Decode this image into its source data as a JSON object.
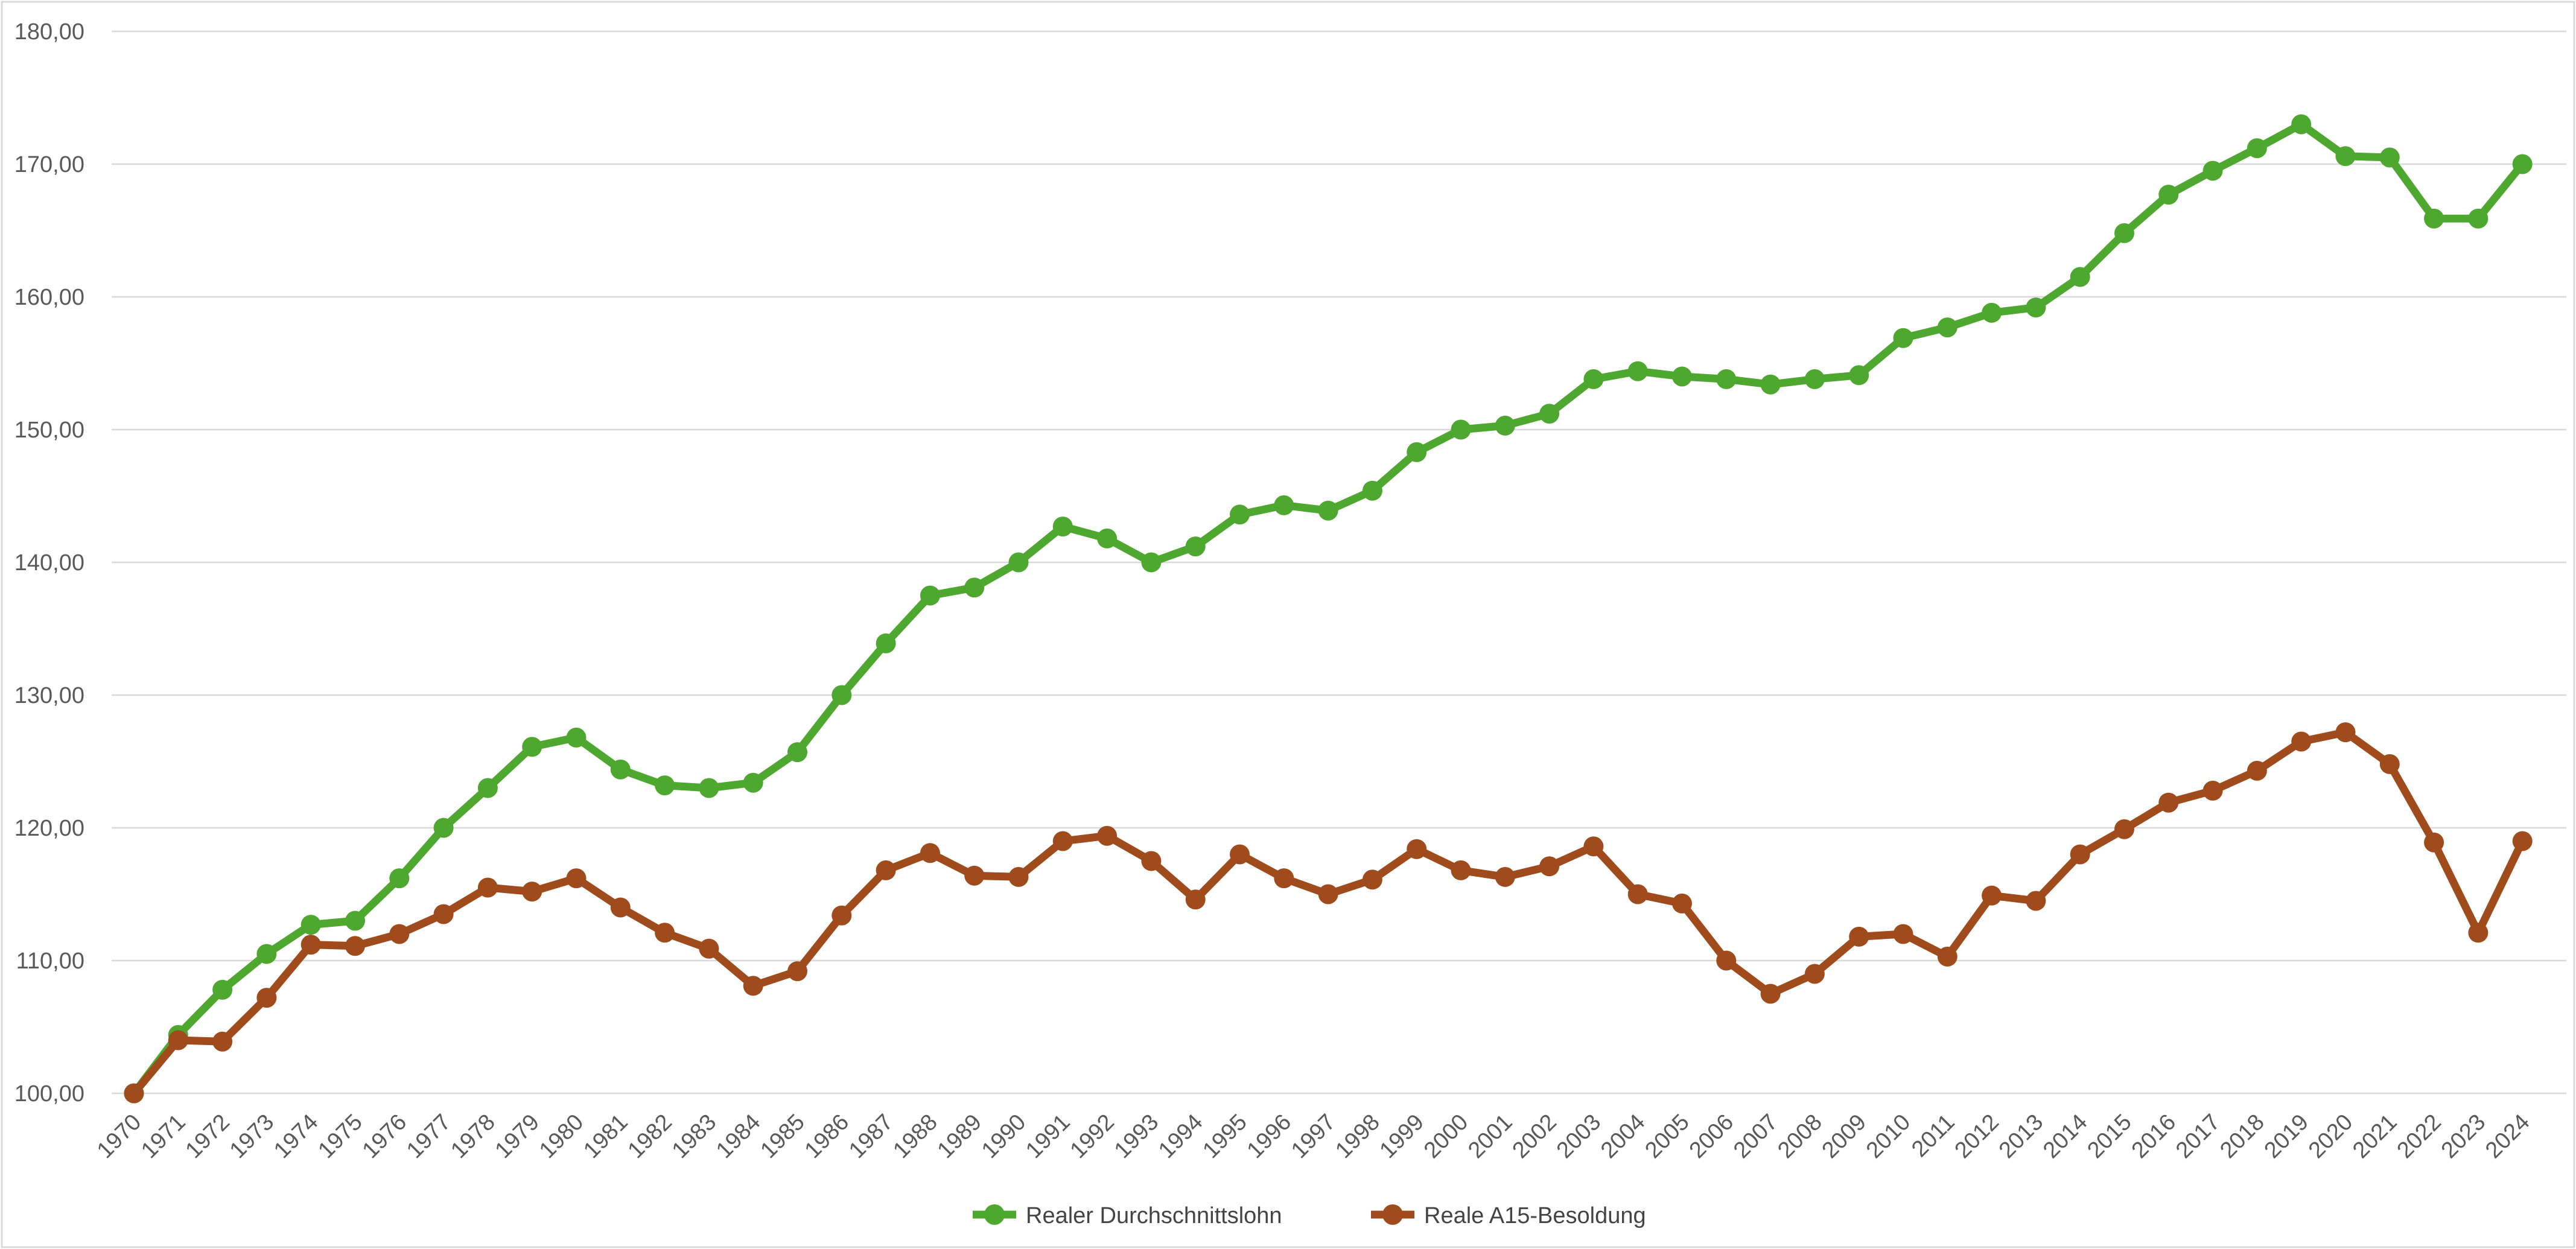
{
  "chart_data": {
    "type": "line",
    "title": "",
    "xlabel": "",
    "ylabel": "",
    "ylim": [
      100,
      180
    ],
    "y_step": 10,
    "y_tick_labels": [
      "100,00",
      "110,00",
      "120,00",
      "130,00",
      "140,00",
      "150,00",
      "160,00",
      "170,00",
      "180,00"
    ],
    "grid": "horizontal",
    "legend_position": "bottom-center",
    "background_color": "#ffffff",
    "gridline_color": "#d9d9d9",
    "axis_text_color": "#595959",
    "categories": [
      1970,
      1971,
      1972,
      1973,
      1974,
      1975,
      1976,
      1977,
      1978,
      1979,
      1980,
      1981,
      1982,
      1983,
      1984,
      1985,
      1986,
      1987,
      1988,
      1989,
      1990,
      1991,
      1992,
      1993,
      1994,
      1995,
      1996,
      1997,
      1998,
      1999,
      2000,
      2001,
      2002,
      2003,
      2004,
      2005,
      2006,
      2007,
      2008,
      2009,
      2010,
      2011,
      2012,
      2013,
      2014,
      2015,
      2016,
      2017,
      2018,
      2019,
      2020,
      2021,
      2022,
      2023,
      2024
    ],
    "series": [
      {
        "name": "Realer Durchschnittslohn",
        "color": "#4ea72e",
        "values": [
          100.0,
          104.4,
          107.8,
          110.5,
          112.7,
          113.0,
          116.2,
          120.0,
          123.0,
          126.1,
          126.8,
          124.4,
          123.2,
          123.0,
          123.4,
          125.7,
          130.0,
          133.9,
          137.5,
          138.1,
          140.0,
          142.7,
          141.8,
          140.0,
          141.2,
          143.6,
          144.3,
          143.9,
          145.4,
          148.3,
          150.0,
          150.3,
          151.2,
          153.8,
          154.4,
          154.0,
          153.8,
          153.4,
          153.8,
          154.1,
          156.9,
          157.7,
          158.8,
          159.2,
          161.5,
          164.8,
          167.7,
          169.5,
          171.2,
          173.0,
          170.6,
          170.5,
          165.9,
          165.9,
          170.0
        ]
      },
      {
        "name": "Reale A15-Besoldung",
        "color": "#a04b1c",
        "values": [
          100.0,
          104.0,
          103.9,
          107.2,
          111.2,
          111.1,
          112.0,
          113.5,
          115.5,
          115.2,
          116.2,
          114.0,
          112.1,
          110.9,
          108.1,
          109.2,
          113.4,
          116.8,
          118.1,
          116.4,
          116.3,
          119.0,
          119.4,
          117.5,
          114.6,
          118.0,
          116.2,
          115.0,
          116.1,
          118.4,
          116.8,
          116.3,
          117.1,
          118.6,
          115.0,
          114.3,
          110.0,
          107.5,
          109.0,
          111.8,
          112.0,
          110.3,
          114.9,
          114.5,
          118.0,
          119.9,
          121.9,
          122.8,
          124.3,
          126.5,
          127.2,
          124.8,
          118.9,
          112.1,
          119.0
        ]
      }
    ]
  },
  "legend": {
    "item1_label": "Realer Durchschnittslohn",
    "item2_label": "Reale A15-Besoldung"
  }
}
